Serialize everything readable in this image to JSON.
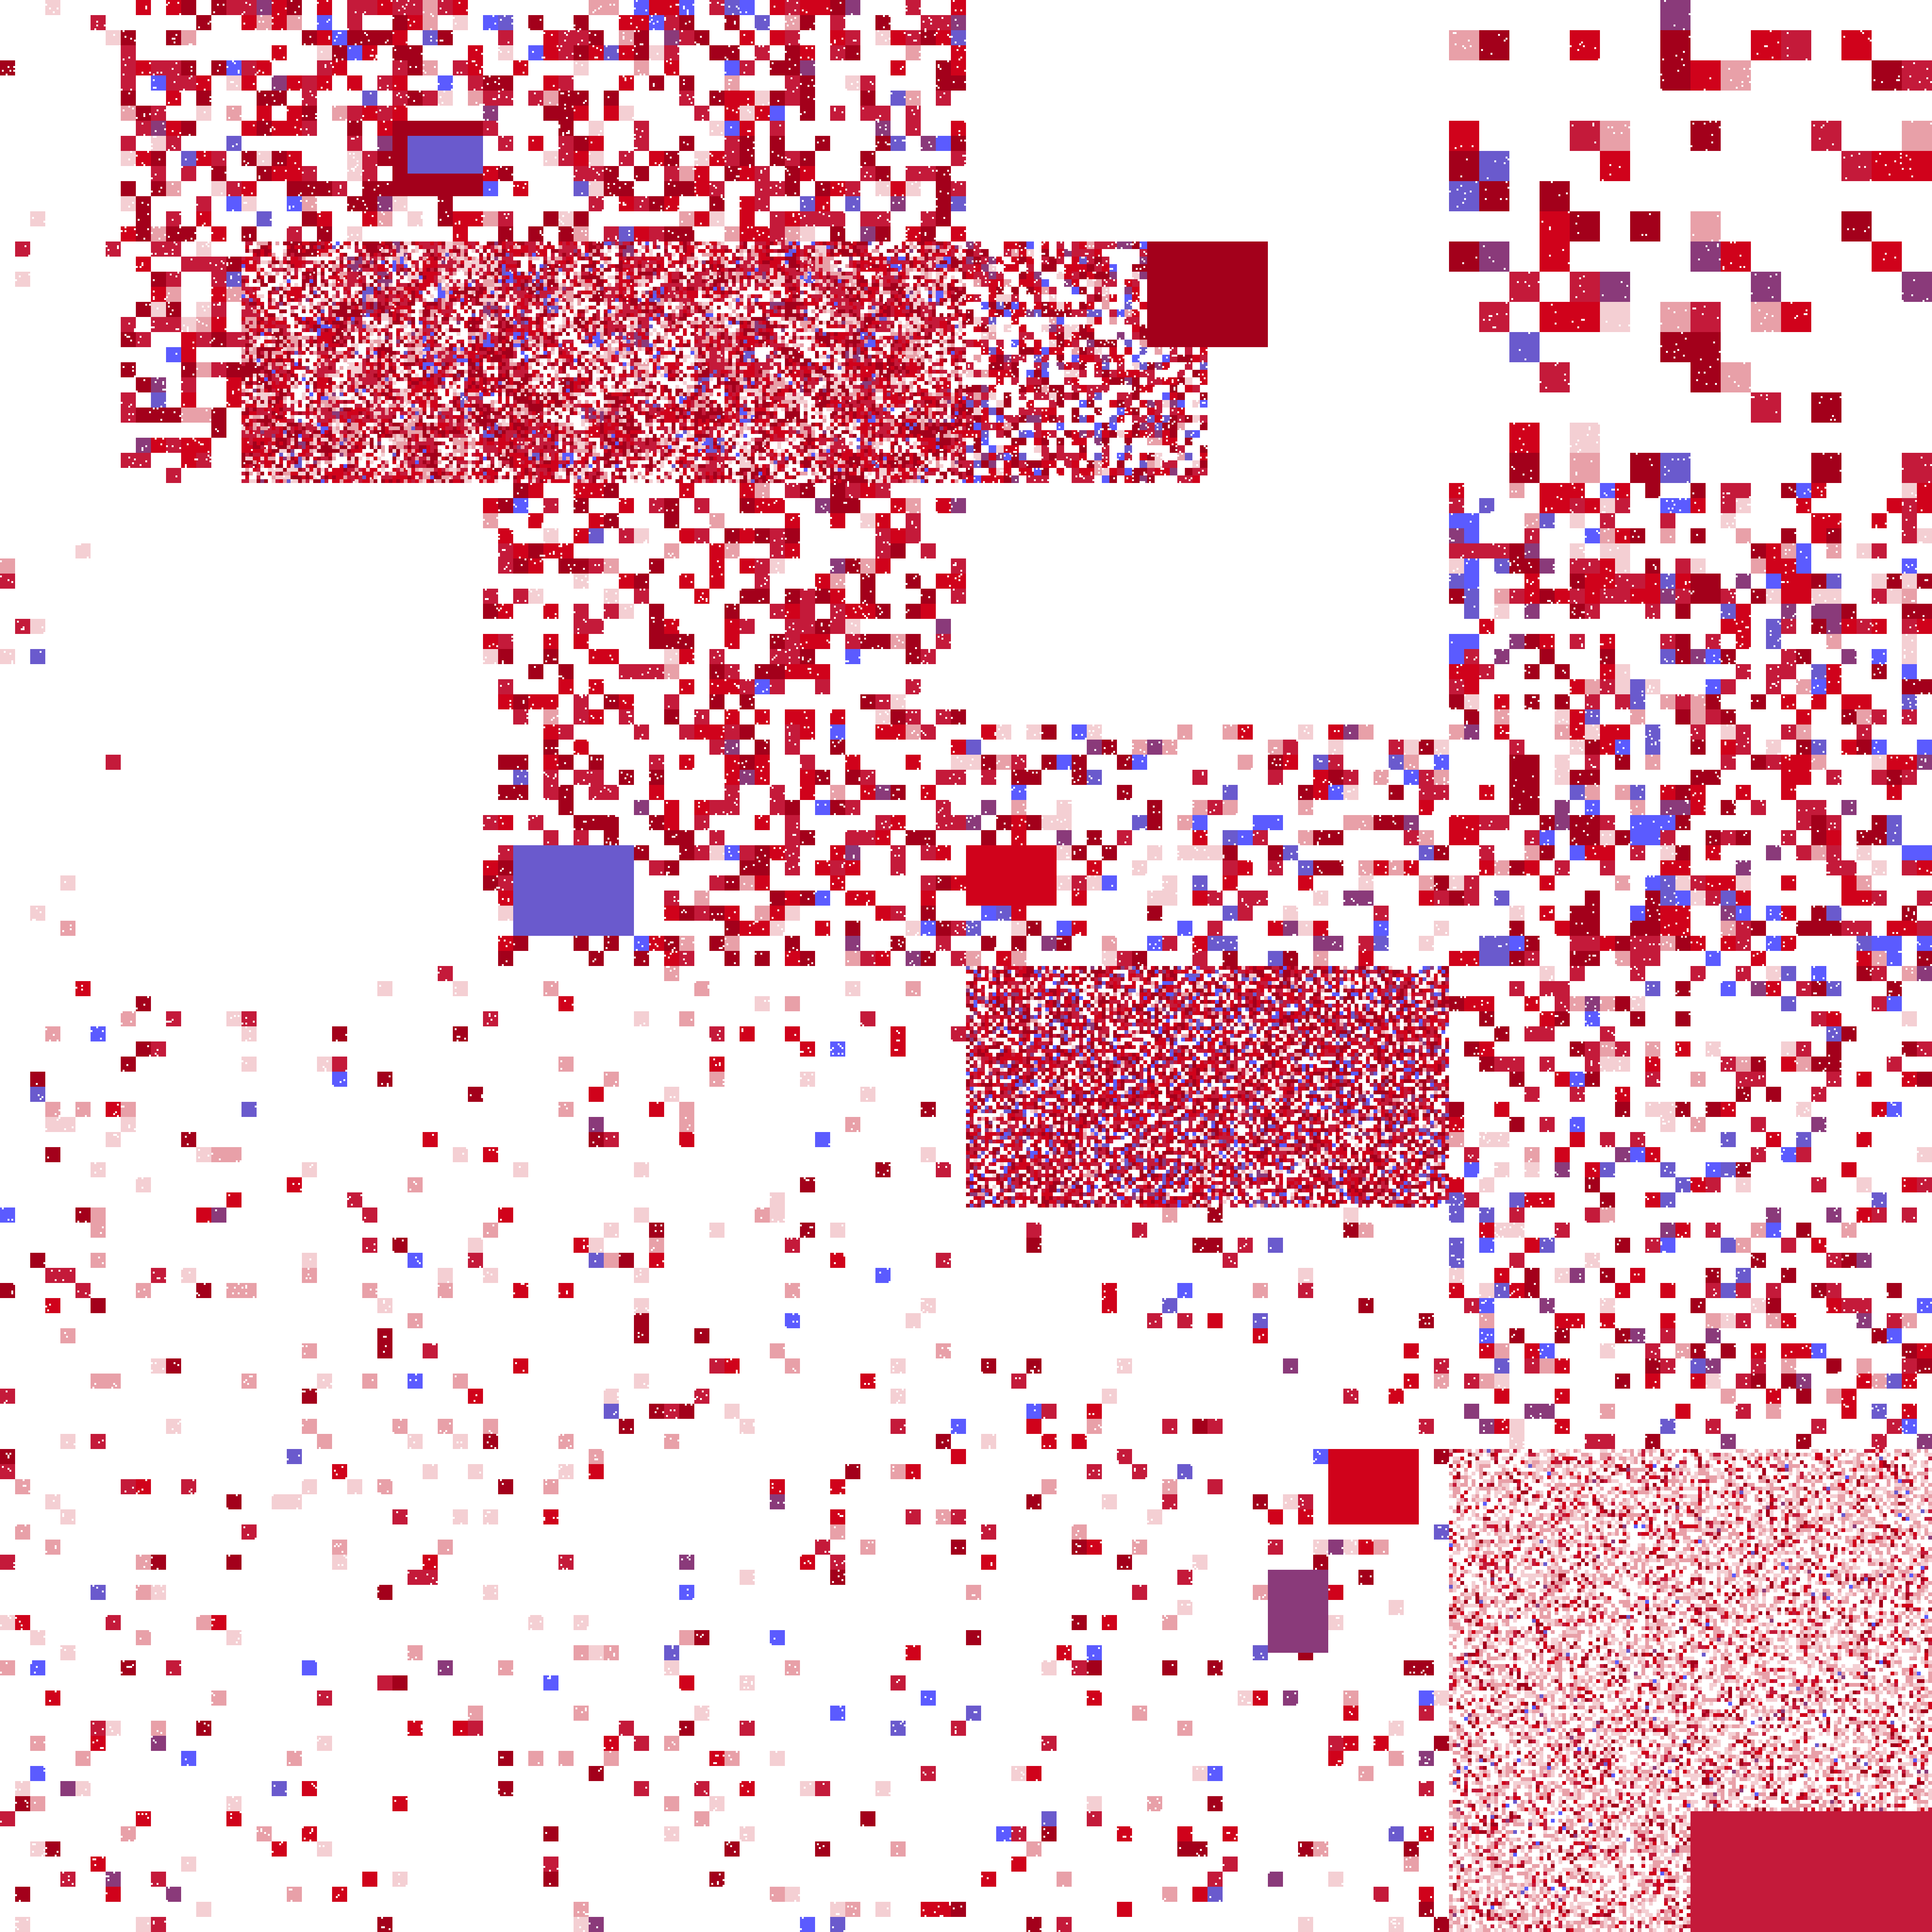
{
  "image": {
    "kind": "pixel-mosaic",
    "background_color": "#ffffff",
    "palette": {
      "red": "#d0021b",
      "dark_red": "#a3001b",
      "crimson": "#c41a3a",
      "pink": "#e8a0a8",
      "light_pink": "#f4cfd3",
      "purple": "#8a3a7a",
      "violet": "#6a5acd",
      "blue": "#5b5bff"
    }
  }
}
